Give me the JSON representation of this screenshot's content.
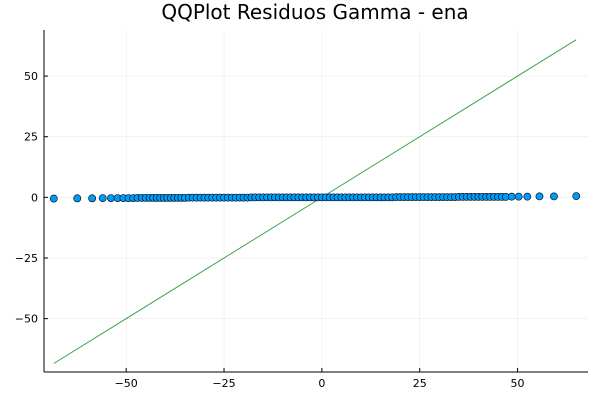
{
  "chart_data": {
    "type": "scatter",
    "title": "QQPlot Residuos Gamma - ena",
    "xlabel": "",
    "ylabel": "",
    "xlim": [
      -71,
      68
    ],
    "ylim": [
      -72,
      69
    ],
    "xticks": [
      -50,
      -25,
      0,
      25,
      50
    ],
    "yticks": [
      -50,
      -25,
      0,
      25,
      50
    ],
    "xtick_labels": [
      "−50",
      "−25",
      "0",
      "25",
      "50"
    ],
    "ytick_labels": [
      "−50",
      "−25",
      "0",
      "25",
      "50"
    ],
    "grid": true,
    "legend": "none",
    "series": [
      {
        "kind": "points",
        "color": "#009af9",
        "points": [
          [
            -68.5,
            -0.5
          ],
          [
            -62.5,
            -0.4
          ],
          [
            -58.7,
            -0.4
          ],
          [
            -56.0,
            -0.3
          ],
          [
            -53.9,
            -0.3
          ],
          [
            -52.2,
            -0.3
          ],
          [
            -50.7,
            -0.3
          ],
          [
            -49.4,
            -0.3
          ],
          [
            -48.2,
            -0.3
          ],
          [
            -47.1,
            -0.2
          ],
          [
            -46.0,
            -0.2
          ],
          [
            -45.0,
            -0.2
          ],
          [
            -44.0,
            -0.2
          ],
          [
            -43.1,
            -0.2
          ],
          [
            -42.2,
            -0.2
          ],
          [
            -41.3,
            -0.2
          ],
          [
            -40.4,
            -0.2
          ],
          [
            -39.5,
            -0.2
          ],
          [
            -38.6,
            -0.2
          ],
          [
            -37.7,
            -0.2
          ],
          [
            -36.8,
            -0.2
          ],
          [
            -35.9,
            -0.2
          ],
          [
            -35.0,
            -0.2
          ],
          [
            -34.0,
            -0.1
          ],
          [
            -33.0,
            -0.1
          ],
          [
            -32.0,
            -0.1
          ],
          [
            -31.0,
            -0.1
          ],
          [
            -30.0,
            -0.1
          ],
          [
            -29.0,
            -0.1
          ],
          [
            -28.0,
            -0.1
          ],
          [
            -27.0,
            -0.1
          ],
          [
            -26.0,
            -0.1
          ],
          [
            -25.0,
            -0.1
          ],
          [
            -24.0,
            -0.1
          ],
          [
            -23.0,
            -0.1
          ],
          [
            -22.0,
            -0.1
          ],
          [
            -21.0,
            -0.1
          ],
          [
            -20.0,
            -0.1
          ],
          [
            -19.0,
            -0.1
          ],
          [
            -18.0,
            0.0
          ],
          [
            -17.0,
            0.0
          ],
          [
            -16.0,
            0.0
          ],
          [
            -15.0,
            0.0
          ],
          [
            -14.0,
            0.0
          ],
          [
            -13.0,
            0.0
          ],
          [
            -12.0,
            0.0
          ],
          [
            -11.0,
            0.0
          ],
          [
            -10.0,
            0.0
          ],
          [
            -9.0,
            0.0
          ],
          [
            -8.0,
            0.0
          ],
          [
            -7.0,
            0.0
          ],
          [
            -6.0,
            0.0
          ],
          [
            -5.0,
            0.0
          ],
          [
            -4.0,
            0.0
          ],
          [
            -3.0,
            0.0
          ],
          [
            -2.0,
            0.0
          ],
          [
            -1.0,
            0.0
          ],
          [
            0.0,
            0.0
          ],
          [
            1.0,
            0.0
          ],
          [
            2.0,
            0.0
          ],
          [
            3.0,
            0.0
          ],
          [
            4.0,
            0.0
          ],
          [
            5.0,
            0.0
          ],
          [
            6.0,
            0.0
          ],
          [
            7.0,
            0.0
          ],
          [
            8.0,
            0.0
          ],
          [
            9.0,
            0.0
          ],
          [
            10.0,
            0.0
          ],
          [
            11.0,
            0.0
          ],
          [
            12.0,
            0.0
          ],
          [
            13.0,
            0.0
          ],
          [
            14.0,
            0.0
          ],
          [
            15.0,
            0.0
          ],
          [
            16.0,
            0.0
          ],
          [
            17.0,
            0.0
          ],
          [
            18.0,
            0.0
          ],
          [
            19.0,
            0.1
          ],
          [
            20.0,
            0.1
          ],
          [
            21.0,
            0.1
          ],
          [
            22.0,
            0.1
          ],
          [
            23.0,
            0.1
          ],
          [
            24.0,
            0.1
          ],
          [
            25.0,
            0.1
          ],
          [
            26.0,
            0.1
          ],
          [
            27.0,
            0.1
          ],
          [
            28.0,
            0.1
          ],
          [
            29.0,
            0.1
          ],
          [
            30.0,
            0.1
          ],
          [
            31.0,
            0.1
          ],
          [
            32.0,
            0.1
          ],
          [
            33.0,
            0.1
          ],
          [
            34.0,
            0.1
          ],
          [
            35.0,
            0.2
          ],
          [
            36.0,
            0.2
          ],
          [
            37.0,
            0.2
          ],
          [
            38.0,
            0.2
          ],
          [
            39.0,
            0.2
          ],
          [
            40.0,
            0.2
          ],
          [
            41.0,
            0.2
          ],
          [
            42.0,
            0.2
          ],
          [
            43.0,
            0.2
          ],
          [
            44.0,
            0.2
          ],
          [
            45.0,
            0.2
          ],
          [
            46.0,
            0.2
          ],
          [
            47.0,
            0.2
          ],
          [
            48.5,
            0.3
          ],
          [
            50.3,
            0.3
          ],
          [
            52.5,
            0.3
          ],
          [
            55.6,
            0.4
          ],
          [
            59.3,
            0.4
          ],
          [
            65.0,
            0.5
          ]
        ]
      },
      {
        "kind": "line",
        "color": "#3da44d",
        "points": [
          [
            -68.5,
            -68.5
          ],
          [
            65.0,
            65.0
          ]
        ]
      }
    ]
  }
}
